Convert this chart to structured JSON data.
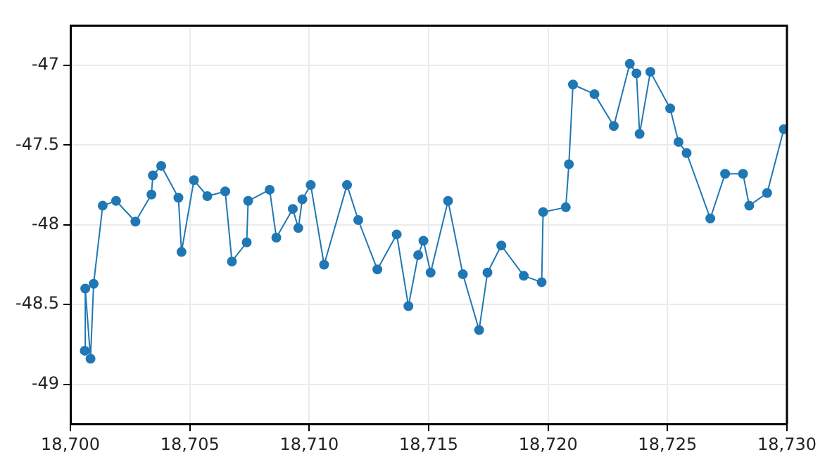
{
  "chart_data": {
    "type": "line",
    "marker": "circle",
    "grid": true,
    "legend": false,
    "xlim": [
      18700,
      18730
    ],
    "xticks": [
      {
        "value": 18700,
        "label": "18,700"
      },
      {
        "value": 18705,
        "label": "18,705"
      },
      {
        "value": 18710,
        "label": "18,710"
      },
      {
        "value": 18715,
        "label": "18,715"
      },
      {
        "value": 18720,
        "label": "18,720"
      },
      {
        "value": 18725,
        "label": "18,725"
      },
      {
        "value": 18730,
        "label": "18,730"
      }
    ],
    "ylim": [
      -49.25,
      -46.75
    ],
    "yticks": [
      -49,
      -48.5,
      -48,
      -47.5,
      -47
    ],
    "series": [
      {
        "color": "#1f77b4",
        "x": [
          18700.6,
          18700.62,
          18700.84,
          18700.97,
          18701.35,
          18701.91,
          18702.72,
          18703.39,
          18703.45,
          18703.8,
          18704.52,
          18704.65,
          18705.17,
          18705.73,
          18706.48,
          18706.76,
          18707.38,
          18707.44,
          18708.34,
          18708.62,
          18709.31,
          18709.54,
          18709.71,
          18710.06,
          18710.62,
          18711.58,
          18712.05,
          18712.85,
          18713.66,
          18714.15,
          18714.56,
          18714.78,
          18715.08,
          18715.81,
          18716.43,
          18717.11,
          18717.46,
          18718.04,
          18718.98,
          18719.73,
          18719.79,
          18720.74,
          18720.87,
          18721.04,
          18721.94,
          18722.75,
          18723.42,
          18723.7,
          18723.83,
          18724.28,
          18725.11,
          18725.46,
          18725.8,
          18726.79,
          18727.41,
          18728.16,
          18728.42,
          18729.17,
          18729.87
        ],
        "values": [
          -48.79,
          -48.4,
          -48.84,
          -48.37,
          -47.88,
          -47.85,
          -47.98,
          -47.81,
          -47.69,
          -47.63,
          -47.83,
          -48.17,
          -47.72,
          -47.82,
          -47.79,
          -48.23,
          -48.11,
          -47.85,
          -47.78,
          -48.08,
          -47.9,
          -48.02,
          -47.84,
          -47.75,
          -48.25,
          -47.75,
          -47.97,
          -48.28,
          -48.06,
          -48.51,
          -48.19,
          -48.1,
          -48.3,
          -47.85,
          -48.31,
          -48.66,
          -48.3,
          -48.13,
          -48.32,
          -48.36,
          -47.92,
          -47.89,
          -47.62,
          -47.12,
          -47.18,
          -47.38,
          -46.99,
          -47.05,
          -47.43,
          -47.04,
          -47.27,
          -47.48,
          -47.55,
          -47.96,
          -47.68,
          -47.68,
          -47.88,
          -47.8,
          -47.4
        ]
      }
    ]
  }
}
